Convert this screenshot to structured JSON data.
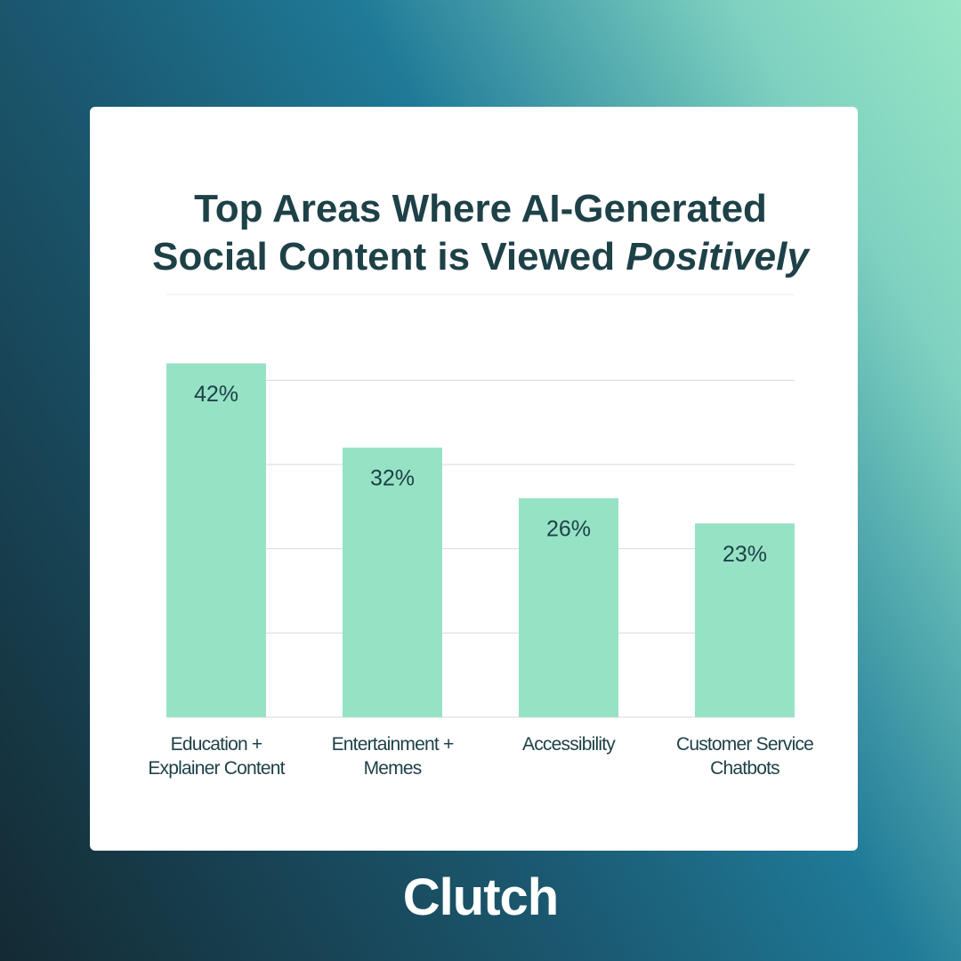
{
  "chart_data": {
    "type": "bar",
    "title": "Top Areas Where AI-Generated Social Content is Viewed",
    "title_emphasis": "Positively",
    "categories": [
      "Education + Explainer Content",
      "Entertainment + Memes",
      "Accessibility",
      "Customer Service Chatbots"
    ],
    "values": [
      42,
      32,
      26,
      23
    ],
    "value_labels": [
      "42%",
      "32%",
      "26%",
      "23%"
    ],
    "color": "#96e2c5",
    "ylim": [
      0,
      45
    ],
    "yticks": [
      0,
      10,
      20,
      30,
      40
    ],
    "grid": true
  },
  "logo": "Clutch"
}
